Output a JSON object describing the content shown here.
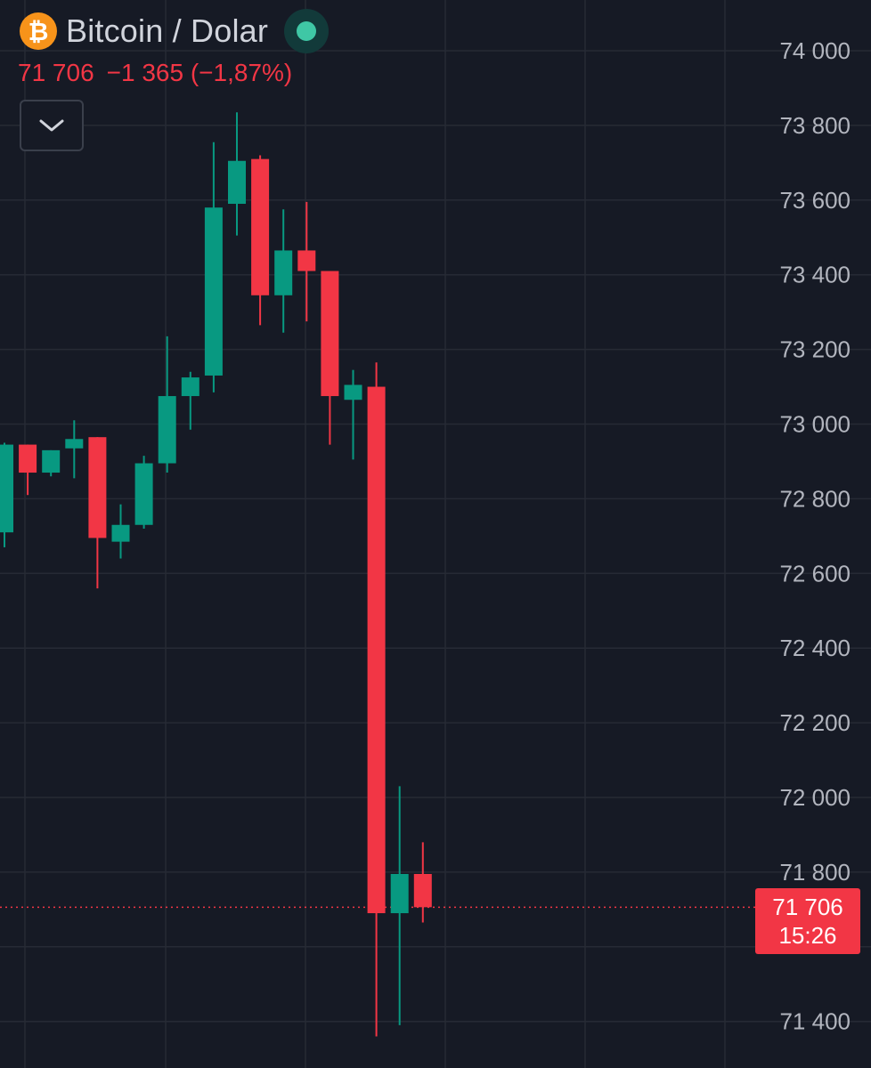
{
  "header": {
    "symbol_title": "Bitcoin / Dolar",
    "logo_glyph": "₿",
    "logo_icon": "bitcoin-icon",
    "market_status_icon": "market-open-dot-icon",
    "last_price": "71 706",
    "change": "−1 365",
    "change_percent": "(−1,87%)",
    "collapse_icon": "chevron-down-icon"
  },
  "price_tag": {
    "price": "71 706",
    "countdown": "15:26"
  },
  "colors": {
    "background": "#161a25",
    "grid": "#262a35",
    "up": "#089981",
    "down": "#f23645",
    "axis_text": "#b2b5be",
    "title_text": "#d1d4dc",
    "bitcoin_orange": "#f7931a",
    "status_green": "#3fc7a5"
  },
  "chart_data": {
    "type": "candlestick",
    "y_axis": {
      "side": "right",
      "ticks": [
        74000,
        73800,
        73600,
        73400,
        73200,
        73000,
        72800,
        72600,
        72400,
        72200,
        72000,
        71800,
        71400
      ],
      "tick_labels": [
        "74 000",
        "73 800",
        "73 600",
        "73 400",
        "73 200",
        "73 000",
        "72 800",
        "72 600",
        "72 400",
        "72 200",
        "72 000",
        "71 800",
        "71 400"
      ],
      "range": [
        71340,
        74130
      ]
    },
    "grid": true,
    "last_price": 71706,
    "candles": [
      {
        "open": 72710,
        "high": 72950,
        "low": 72670,
        "close": 72945
      },
      {
        "open": 72945,
        "high": 72945,
        "low": 72810,
        "close": 72870
      },
      {
        "open": 72870,
        "high": 72930,
        "low": 72860,
        "close": 72930
      },
      {
        "open": 72935,
        "high": 73010,
        "low": 72855,
        "close": 72960
      },
      {
        "open": 72965,
        "high": 72965,
        "low": 72560,
        "close": 72695
      },
      {
        "open": 72685,
        "high": 72785,
        "low": 72640,
        "close": 72730
      },
      {
        "open": 72730,
        "high": 72915,
        "low": 72720,
        "close": 72895
      },
      {
        "open": 72895,
        "high": 73235,
        "low": 72870,
        "close": 73075
      },
      {
        "open": 73075,
        "high": 73140,
        "low": 72985,
        "close": 73125
      },
      {
        "open": 73130,
        "high": 73755,
        "low": 73085,
        "close": 73580
      },
      {
        "open": 73590,
        "high": 73835,
        "low": 73505,
        "close": 73705
      },
      {
        "open": 73710,
        "high": 73720,
        "low": 73265,
        "close": 73345
      },
      {
        "open": 73345,
        "high": 73575,
        "low": 73245,
        "close": 73465
      },
      {
        "open": 73465,
        "high": 73595,
        "low": 73275,
        "close": 73410
      },
      {
        "open": 73410,
        "high": 73410,
        "low": 72945,
        "close": 73075
      },
      {
        "open": 73065,
        "high": 73145,
        "low": 72905,
        "close": 73105
      },
      {
        "open": 73100,
        "high": 73165,
        "low": 71360,
        "close": 71690
      },
      {
        "open": 71690,
        "high": 72030,
        "low": 71390,
        "close": 71795
      },
      {
        "open": 71795,
        "high": 71880,
        "low": 71665,
        "close": 71706
      }
    ]
  }
}
